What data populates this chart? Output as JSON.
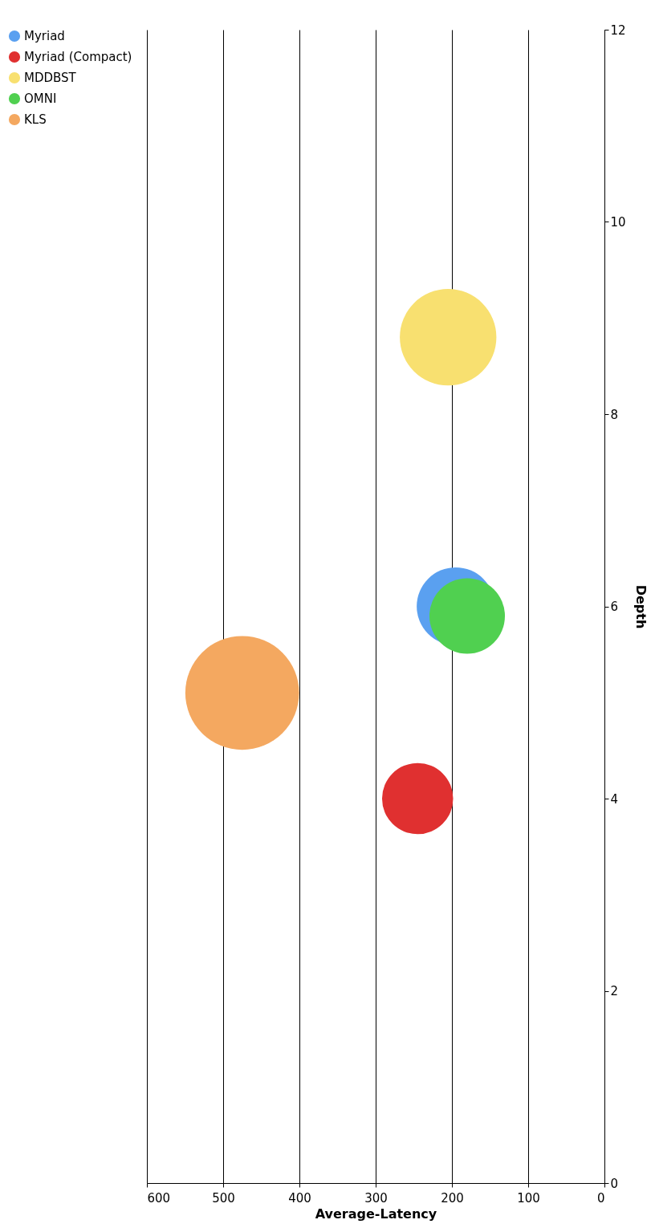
{
  "chart_data": {
    "type": "bubble",
    "xlabel": "Average-Latency",
    "ylabel": "Depth",
    "xlim": [
      600,
      0
    ],
    "xticks": [
      600,
      500,
      400,
      300,
      200,
      100,
      0
    ],
    "ylim": [
      0,
      12
    ],
    "yticks": [
      0,
      2,
      4,
      6,
      8,
      10,
      12
    ],
    "grid": "x",
    "legend": "left",
    "marker": "circle",
    "series": [
      {
        "name": "Myriad",
        "color": "#5aa0f0",
        "x": [
          195
        ],
        "values": [
          6
        ],
        "sizes": [
          0.47
        ]
      },
      {
        "name": "Myriad (Compact)",
        "color": "#e03030",
        "x": [
          245
        ],
        "values": [
          4
        ],
        "sizes": [
          0.39
        ]
      },
      {
        "name": "MDDBST",
        "color": "#f8e070",
        "x": [
          205
        ],
        "values": [
          8.8
        ],
        "sizes": [
          0.72
        ]
      },
      {
        "name": "OMNI",
        "color": "#50d050",
        "x": [
          180
        ],
        "values": [
          5.9
        ],
        "sizes": [
          0.44
        ]
      },
      {
        "name": "KLS",
        "color": "#f4a860",
        "x": [
          475
        ],
        "values": [
          5.1
        ],
        "sizes": [
          1
        ]
      }
    ]
  }
}
